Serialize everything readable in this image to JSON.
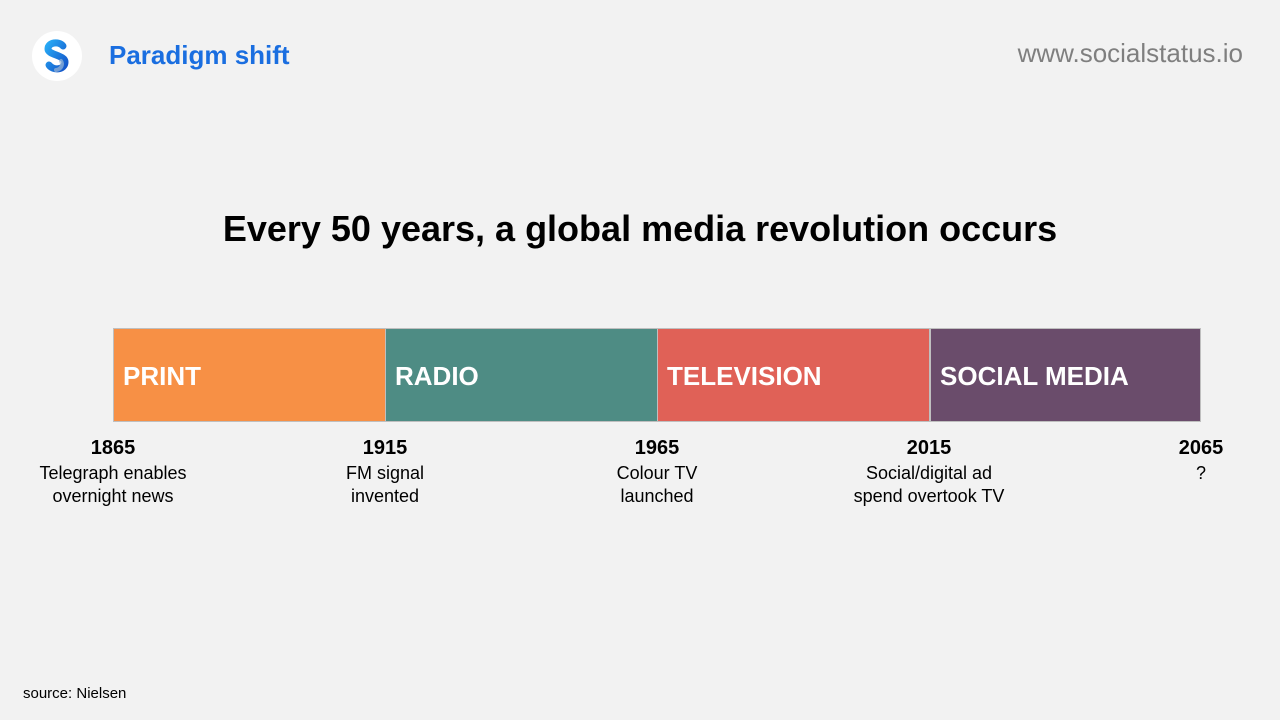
{
  "header": {
    "title": "Paradigm shift",
    "website": "www.socialstatus.io",
    "logo_icon": "socialstatus-logo-icon"
  },
  "headline": "Every 50 years, a global media revolution occurs",
  "eras": [
    {
      "label": "PRINT",
      "color": "#f79045"
    },
    {
      "label": "RADIO",
      "color": "#4e8c84"
    },
    {
      "label": "TELEVISION",
      "color": "#e06157"
    },
    {
      "label": "SOCIAL MEDIA",
      "color": "#6a4c6b"
    }
  ],
  "milestones": [
    {
      "year": "1865",
      "note": "Telegraph enables\novernight news"
    },
    {
      "year": "1915",
      "note": "FM signal\ninvented"
    },
    {
      "year": "1965",
      "note": "Colour TV\nlaunched"
    },
    {
      "year": "2015",
      "note": "Social/digital ad\nspend overtook TV"
    },
    {
      "year": "2065",
      "note": "?"
    }
  ],
  "source": "source: Nielsen"
}
